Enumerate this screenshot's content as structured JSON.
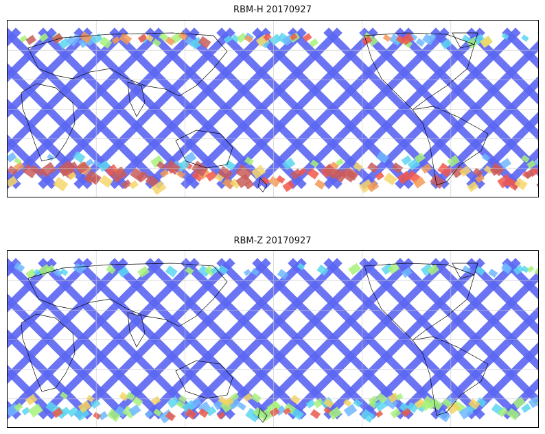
{
  "panels": [
    {
      "id": "top",
      "title": "RBM-H 20170927",
      "dominant_track_color": "#5b66f2",
      "high_value_colors": [
        "#f2574a",
        "#f39a55",
        "#f7d66a",
        "#c85c5c"
      ],
      "mid_value_colors": [
        "#5ad6f0",
        "#6fb7ff",
        "#a6f27a"
      ]
    },
    {
      "id": "bottom",
      "title": "RBM-Z 20170927",
      "dominant_track_color": "#5b66f2",
      "high_value_colors": [
        "#f6d35e",
        "#f79a55",
        "#e85a4a"
      ],
      "mid_value_colors": [
        "#5ad6f0",
        "#6fb7ff",
        "#a6f27a"
      ]
    }
  ],
  "map": {
    "projection": "plate carree",
    "gridlines": true,
    "coastlines_color": "#000000",
    "gridline_color": "#c8c8c8"
  }
}
